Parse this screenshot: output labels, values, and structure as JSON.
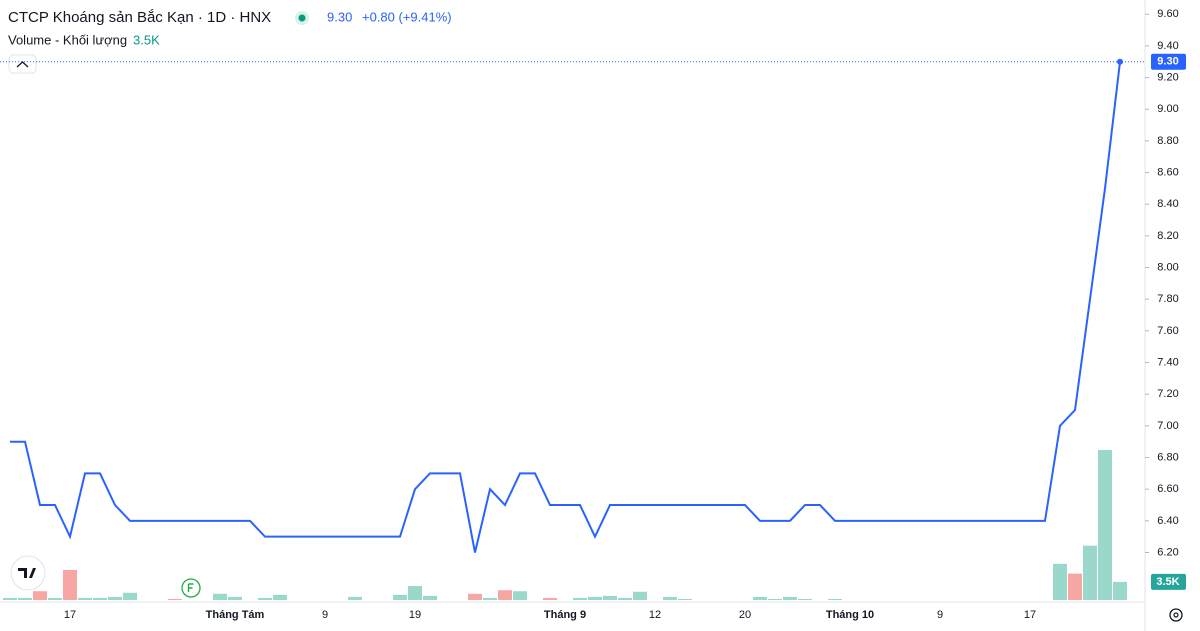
{
  "header": {
    "title": "CTCP Khoáng sản Bắc Kạn · 1D · HNX",
    "price": "9.30",
    "change": "+0.80 (+9.41%)",
    "volume_title": "Volume - Khối lượng",
    "volume_value": "3.5K"
  },
  "chart_data": {
    "type": "line",
    "color": "#2962ff",
    "categories": [
      null,
      null,
      null,
      null,
      "17",
      null,
      null,
      null,
      null,
      null,
      null,
      null,
      null,
      null,
      null,
      "Tháng Tám",
      null,
      null,
      null,
      null,
      null,
      "9",
      null,
      null,
      null,
      null,
      null,
      "19",
      null,
      null,
      null,
      null,
      null,
      null,
      null,
      null,
      null,
      "Tháng 9",
      null,
      null,
      null,
      null,
      null,
      "12",
      null,
      null,
      null,
      null,
      null,
      "20",
      null,
      null,
      null,
      null,
      null,
      null,
      "Tháng 10",
      null,
      null,
      null,
      null,
      null,
      "9",
      null,
      null,
      null,
      null,
      null,
      "17",
      null,
      null,
      null,
      null,
      null,
      null
    ],
    "values": [
      6.9,
      6.9,
      6.5,
      6.5,
      6.3,
      6.7,
      6.7,
      6.5,
      6.4,
      6.4,
      6.4,
      6.4,
      6.4,
      6.4,
      6.4,
      6.4,
      6.4,
      6.3,
      6.3,
      6.3,
      6.3,
      6.3,
      6.3,
      6.3,
      6.3,
      6.3,
      6.3,
      6.6,
      6.7,
      6.7,
      6.7,
      6.2,
      6.6,
      6.5,
      6.7,
      6.7,
      6.5,
      6.5,
      6.5,
      6.3,
      6.5,
      6.5,
      6.5,
      6.5,
      6.5,
      6.5,
      6.5,
      6.5,
      6.5,
      6.5,
      6.4,
      6.4,
      6.4,
      6.5,
      6.5,
      6.4,
      6.4,
      6.4,
      6.4,
      6.4,
      6.4,
      6.4,
      6.4,
      6.4,
      6.4,
      6.4,
      6.4,
      6.4,
      6.4,
      6.4,
      7.0,
      7.1,
      7.8,
      8.5,
      9.3
    ],
    "volume": {
      "values": [
        400,
        400,
        1700,
        400,
        5800,
        400,
        400,
        600,
        1400,
        0,
        0,
        200,
        0,
        0,
        1200,
        600,
        0,
        400,
        1000,
        0,
        0,
        0,
        0,
        600,
        0,
        0,
        1000,
        2700,
        800,
        0,
        0,
        1200,
        400,
        1900,
        1700,
        0,
        400,
        0,
        400,
        600,
        800,
        400,
        1600,
        0,
        600,
        200,
        0,
        0,
        0,
        0,
        600,
        200,
        600,
        200,
        0,
        200,
        0,
        0,
        0,
        0,
        0,
        0,
        0,
        0,
        0,
        0,
        0,
        0,
        0,
        0,
        7000,
        5100,
        10500,
        29000,
        3500
      ],
      "colors": [
        "#9ad8cc",
        "#9ad8cc",
        "#f6a7a4",
        "#9ad8cc",
        "#f6a7a4",
        "#9ad8cc",
        "#9ad8cc",
        "#9ad8cc",
        "#9ad8cc",
        "#9ad8cc",
        "#9ad8cc",
        "#f6a7a4",
        "#9ad8cc",
        "#9ad8cc",
        "#9ad8cc",
        "#9ad8cc",
        "#9ad8cc",
        "#9ad8cc",
        "#9ad8cc",
        "#9ad8cc",
        "#9ad8cc",
        "#9ad8cc",
        "#9ad8cc",
        "#9ad8cc",
        "#9ad8cc",
        "#9ad8cc",
        "#9ad8cc",
        "#9ad8cc",
        "#9ad8cc",
        "#9ad8cc",
        "#9ad8cc",
        "#f6a7a4",
        "#9ad8cc",
        "#f6a7a4",
        "#9ad8cc",
        "#9ad8cc",
        "#f6a7a4",
        "#9ad8cc",
        "#9ad8cc",
        "#9ad8cc",
        "#9ad8cc",
        "#9ad8cc",
        "#9ad8cc",
        "#9ad8cc",
        "#9ad8cc",
        "#9ad8cc",
        "#9ad8cc",
        "#9ad8cc",
        "#9ad8cc",
        "#9ad8cc",
        "#9ad8cc",
        "#9ad8cc",
        "#9ad8cc",
        "#9ad8cc",
        "#9ad8cc",
        "#9ad8cc",
        "#9ad8cc",
        "#9ad8cc",
        "#9ad8cc",
        "#9ad8cc",
        "#9ad8cc",
        "#9ad8cc",
        "#9ad8cc",
        "#9ad8cc",
        "#9ad8cc",
        "#9ad8cc",
        "#9ad8cc",
        "#9ad8cc",
        "#9ad8cc",
        "#9ad8cc",
        "#9ad8cc",
        "#f6a7a4",
        "#9ad8cc",
        "#9ad8cc",
        "#9ad8cc"
      ]
    },
    "ylim": [
      5.9,
      9.69
    ],
    "yticks": [
      {
        "value": 6.2,
        "label": "6.20"
      },
      {
        "value": 6.4,
        "label": "6.40"
      },
      {
        "value": 6.6,
        "label": "6.60"
      },
      {
        "value": 6.8,
        "label": "6.80"
      },
      {
        "value": 7.0,
        "label": "7.00"
      },
      {
        "value": 7.2,
        "label": "7.20"
      },
      {
        "value": 7.4,
        "label": "7.40"
      },
      {
        "value": 7.6,
        "label": "7.60"
      },
      {
        "value": 7.8,
        "label": "7.80"
      },
      {
        "value": 8.0,
        "label": "8.00"
      },
      {
        "value": 8.2,
        "label": "8.20"
      },
      {
        "value": 8.4,
        "label": "8.40"
      },
      {
        "value": 8.6,
        "label": "8.60"
      },
      {
        "value": 8.8,
        "label": "8.80"
      },
      {
        "value": 9.0,
        "label": "9.00"
      },
      {
        "value": 9.2,
        "label": "9.20"
      },
      {
        "value": 9.4,
        "label": "9.40"
      },
      {
        "value": 9.6,
        "label": "9.60"
      }
    ],
    "grid": false
  }
}
